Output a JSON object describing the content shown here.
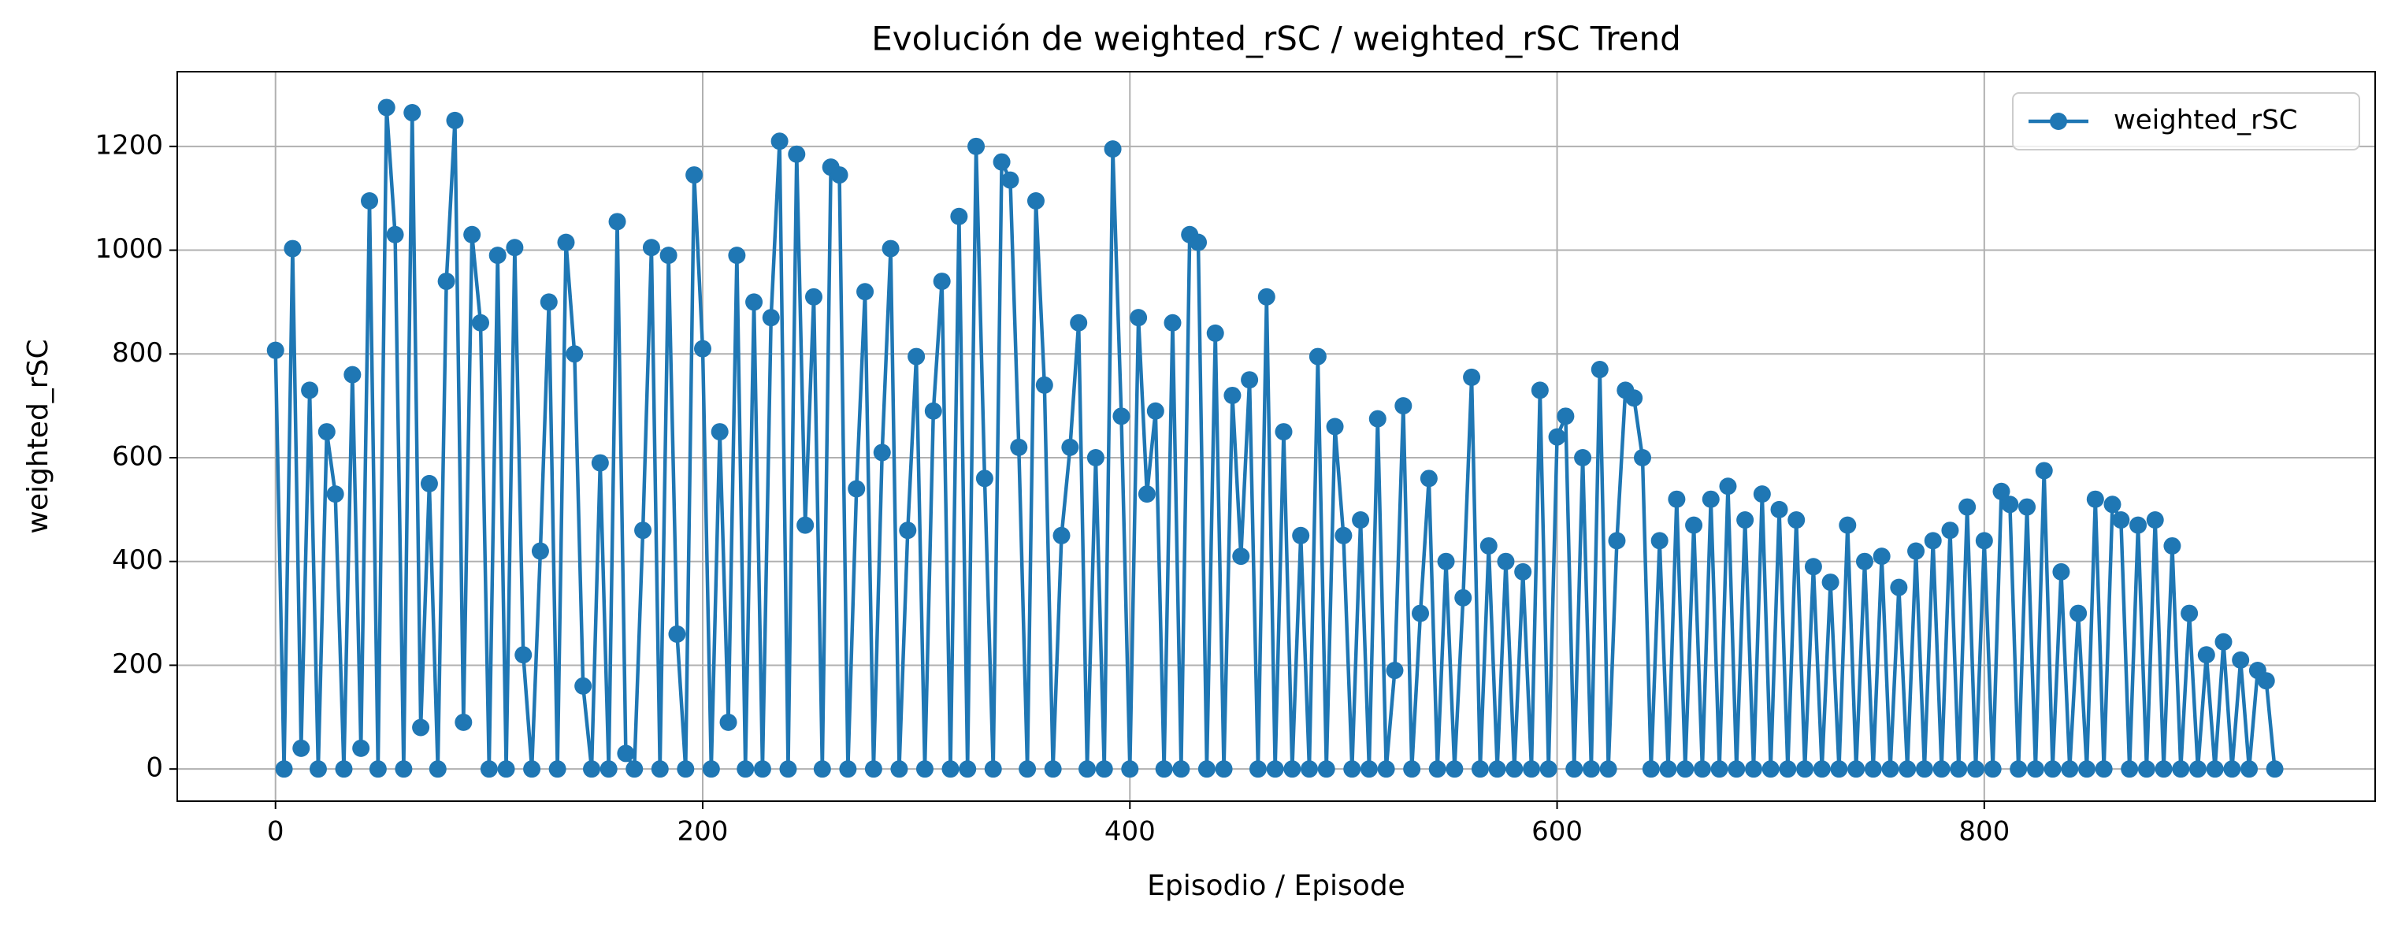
{
  "chart_data": {
    "type": "line",
    "title": "Evolución de weighted_rSC / weighted_rSC Trend",
    "x_label": "Episodio / Episode",
    "y_label": "weighted_rSC",
    "xlim": [
      -46,
      983
    ],
    "ylim": [
      -62,
      1344
    ],
    "xticks": [
      0,
      200,
      400,
      600,
      800
    ],
    "yticks": [
      0,
      200,
      400,
      600,
      800,
      1000,
      1200
    ],
    "grid": true,
    "legend": "upper right",
    "x": [
      0,
      4,
      8,
      12,
      16,
      20,
      24,
      28,
      32,
      36,
      40,
      44,
      48,
      52,
      56,
      60,
      64,
      68,
      72,
      76,
      80,
      84,
      88,
      92,
      96,
      100,
      104,
      108,
      112,
      116,
      120,
      124,
      128,
      132,
      136,
      140,
      144,
      148,
      152,
      156,
      160,
      164,
      168,
      172,
      176,
      180,
      184,
      188,
      192,
      196,
      200,
      204,
      208,
      212,
      216,
      220,
      224,
      228,
      232,
      236,
      240,
      244,
      248,
      252,
      256,
      260,
      264,
      268,
      272,
      276,
      280,
      284,
      288,
      292,
      296,
      300,
      304,
      308,
      312,
      316,
      320,
      324,
      328,
      332,
      336,
      340,
      344,
      348,
      352,
      356,
      360,
      364,
      368,
      372,
      376,
      380,
      384,
      388,
      392,
      396,
      400,
      404,
      408,
      412,
      416,
      420,
      424,
      428,
      432,
      436,
      440,
      444,
      448,
      452,
      456,
      460,
      464,
      468,
      472,
      476,
      480,
      484,
      488,
      492,
      496,
      500,
      504,
      508,
      512,
      516,
      520,
      524,
      528,
      532,
      536,
      540,
      544,
      548,
      552,
      556,
      560,
      564,
      568,
      572,
      576,
      580,
      584,
      588,
      592,
      596,
      600,
      604,
      608,
      612,
      616,
      620,
      624,
      628,
      632,
      636,
      640,
      644,
      648,
      652,
      656,
      660,
      664,
      668,
      672,
      676,
      680,
      684,
      688,
      692,
      696,
      700,
      704,
      708,
      712,
      716,
      720,
      724,
      728,
      732,
      736,
      740,
      744,
      748,
      752,
      756,
      760,
      764,
      768,
      772,
      776,
      780,
      784,
      788,
      792,
      796,
      800,
      804,
      808,
      812,
      816,
      820,
      824,
      828,
      832,
      836,
      840,
      844,
      848,
      852,
      856,
      860,
      864,
      868,
      872,
      876,
      880,
      884,
      888,
      892,
      896,
      900,
      904,
      908,
      912,
      916,
      920,
      924,
      928,
      932,
      936
    ],
    "series": [
      {
        "name": "weighted_rSC",
        "color": "#1f77b4",
        "values": [
          807,
          0,
          1003,
          40,
          730,
          0,
          650,
          530,
          0,
          760,
          40,
          1095,
          0,
          1275,
          1030,
          0,
          1265,
          80,
          550,
          0,
          940,
          1250,
          90,
          1030,
          860,
          0,
          990,
          0,
          1005,
          220,
          0,
          420,
          900,
          0,
          1015,
          800,
          160,
          0,
          590,
          0,
          1055,
          30,
          0,
          460,
          1005,
          0,
          990,
          260,
          0,
          1145,
          810,
          0,
          650,
          90,
          990,
          0,
          900,
          0,
          870,
          1210,
          0,
          1185,
          470,
          910,
          0,
          1160,
          1145,
          0,
          540,
          920,
          0,
          610,
          1003,
          0,
          460,
          795,
          0,
          690,
          940,
          0,
          1065,
          0,
          1200,
          560,
          0,
          1170,
          1135,
          620,
          0,
          1095,
          740,
          0,
          450,
          620,
          860,
          0,
          600,
          0,
          1195,
          680,
          0,
          870,
          530,
          690,
          0,
          860,
          0,
          1030,
          1015,
          0,
          840,
          0,
          720,
          410,
          750,
          0,
          910,
          0,
          650,
          0,
          450,
          0,
          795,
          0,
          660,
          450,
          0,
          480,
          0,
          675,
          0,
          190,
          700,
          0,
          300,
          560,
          0,
          400,
          0,
          330,
          755,
          0,
          430,
          0,
          400,
          0,
          380,
          0,
          730,
          0,
          640,
          680,
          0,
          600,
          0,
          770,
          0,
          440,
          730,
          715,
          600,
          0,
          440,
          0,
          520,
          0,
          470,
          0,
          520,
          0,
          545,
          0,
          480,
          0,
          530,
          0,
          500,
          0,
          480,
          0,
          390,
          0,
          360,
          0,
          470,
          0,
          400,
          0,
          410,
          0,
          350,
          0,
          420,
          0,
          440,
          0,
          460,
          0,
          505,
          0,
          440,
          0,
          535,
          510,
          0,
          505,
          0,
          575,
          0,
          380,
          0,
          300,
          0,
          520,
          0,
          510,
          480,
          0,
          470,
          0,
          480,
          0,
          430,
          0,
          300,
          0,
          220,
          0,
          245,
          0,
          210,
          0,
          190,
          170,
          0
        ]
      }
    ]
  }
}
